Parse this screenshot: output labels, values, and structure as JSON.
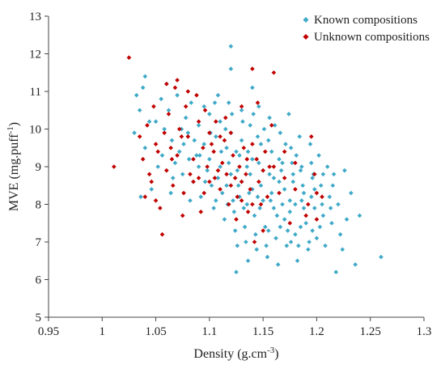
{
  "chart_data": {
    "type": "scatter",
    "title": "",
    "xlabel_main": "Density (g.cm",
    "xlabel_sup": "-3",
    "xlabel_end": ")",
    "ylabel_main": "MVE  (mg.puff",
    "ylabel_sup": "-1",
    "ylabel_end": ")",
    "xlim": [
      0.95,
      1.3
    ],
    "ylim": [
      5,
      13
    ],
    "xticks": [
      "0.95",
      "1",
      "1.05",
      "1.1",
      "1.15",
      "1.2",
      "1.25",
      "1.3"
    ],
    "yticks": [
      "5",
      "6",
      "7",
      "8",
      "9",
      "10",
      "11",
      "12",
      "13"
    ],
    "grid": false,
    "legend_position": "top-right",
    "series": [
      {
        "name": "Known compositions",
        "color": "#3FA9C8",
        "marker": "diamond",
        "points": [
          [
            1.04,
            11.4
          ],
          [
            1.038,
            11.1
          ],
          [
            1.032,
            10.9
          ],
          [
            1.035,
            10.5
          ],
          [
            1.03,
            9.9
          ],
          [
            1.04,
            9.5
          ],
          [
            1.05,
            10.2
          ],
          [
            1.055,
            10.8
          ],
          [
            1.06,
            11.2
          ],
          [
            1.062,
            10.5
          ],
          [
            1.065,
            9.7
          ],
          [
            1.068,
            9.1
          ],
          [
            1.07,
            10.9
          ],
          [
            1.072,
            9.4
          ],
          [
            1.075,
            8.8
          ],
          [
            1.078,
            10.3
          ],
          [
            1.08,
            9.9
          ],
          [
            1.083,
            10.7
          ],
          [
            1.085,
            8.6
          ],
          [
            1.088,
            9.3
          ],
          [
            1.09,
            10.1
          ],
          [
            1.092,
            8.2
          ],
          [
            1.095,
            9.6
          ],
          [
            1.098,
            8.9
          ],
          [
            1.1,
            10.4
          ],
          [
            1.1,
            9.2
          ],
          [
            1.102,
            8.5
          ],
          [
            1.104,
            7.9
          ],
          [
            1.106,
            9.8
          ],
          [
            1.108,
            10.9
          ],
          [
            1.11,
            10.2
          ],
          [
            1.11,
            9.0
          ],
          [
            1.112,
            8.3
          ],
          [
            1.114,
            7.6
          ],
          [
            1.116,
            9.5
          ],
          [
            1.118,
            10.7
          ],
          [
            1.12,
            11.6
          ],
          [
            1.12,
            9.9
          ],
          [
            1.12,
            8.8
          ],
          [
            1.122,
            8.1
          ],
          [
            1.124,
            7.3
          ],
          [
            1.126,
            6.9
          ],
          [
            1.128,
            9.3
          ],
          [
            1.13,
            10.5
          ],
          [
            1.13,
            9.7
          ],
          [
            1.13,
            8.6
          ],
          [
            1.132,
            7.9
          ],
          [
            1.134,
            7.0
          ],
          [
            1.136,
            6.5
          ],
          [
            1.138,
            10.1
          ],
          [
            1.14,
            11.1
          ],
          [
            1.14,
            9.2
          ],
          [
            1.14,
            8.4
          ],
          [
            1.142,
            7.7
          ],
          [
            1.144,
            6.8
          ],
          [
            1.146,
            10.6
          ],
          [
            1.148,
            9.6
          ],
          [
            1.15,
            8.9
          ],
          [
            1.15,
            8.1
          ],
          [
            1.152,
            7.4
          ],
          [
            1.154,
            6.6
          ],
          [
            1.156,
            10.3
          ],
          [
            1.158,
            9.4
          ],
          [
            1.16,
            8.7
          ],
          [
            1.16,
            7.9
          ],
          [
            1.162,
            7.1
          ],
          [
            1.164,
            6.4
          ],
          [
            1.166,
            9.9
          ],
          [
            1.168,
            9.1
          ],
          [
            1.17,
            8.4
          ],
          [
            1.17,
            7.6
          ],
          [
            1.172,
            6.9
          ],
          [
            1.174,
            10.4
          ],
          [
            1.176,
            9.5
          ],
          [
            1.178,
            8.8
          ],
          [
            1.18,
            8.0
          ],
          [
            1.18,
            7.2
          ],
          [
            1.182,
            6.5
          ],
          [
            1.184,
            9.8
          ],
          [
            1.186,
            9.0
          ],
          [
            1.188,
            8.3
          ],
          [
            1.19,
            7.5
          ],
          [
            1.192,
            6.8
          ],
          [
            1.194,
            9.6
          ],
          [
            1.196,
            8.7
          ],
          [
            1.198,
            7.9
          ],
          [
            1.2,
            7.1
          ],
          [
            1.202,
            9.3
          ],
          [
            1.204,
            8.5
          ],
          [
            1.206,
            7.7
          ],
          [
            1.208,
            6.9
          ],
          [
            1.21,
            9.0
          ],
          [
            1.212,
            8.2
          ],
          [
            1.214,
            7.5
          ],
          [
            1.216,
            8.8
          ],
          [
            1.218,
            6.2
          ],
          [
            1.22,
            8.0
          ],
          [
            1.222,
            7.2
          ],
          [
            1.224,
            6.8
          ],
          [
            1.228,
            7.6
          ],
          [
            1.232,
            8.3
          ],
          [
            1.236,
            6.4
          ],
          [
            1.24,
            7.7
          ],
          [
            1.26,
            6.6
          ],
          [
            1.12,
            12.2
          ],
          [
            1.125,
            6.2
          ],
          [
            1.105,
            10.7
          ],
          [
            1.115,
            10.0
          ],
          [
            1.135,
            9.0
          ],
          [
            1.145,
            8.2
          ],
          [
            1.155,
            9.7
          ],
          [
            1.165,
            8.6
          ],
          [
            1.175,
            7.8
          ],
          [
            1.185,
            8.9
          ],
          [
            1.195,
            8.2
          ],
          [
            1.125,
            9.4
          ],
          [
            1.135,
            8.0
          ],
          [
            1.145,
            9.8
          ],
          [
            1.155,
            7.3
          ],
          [
            1.165,
            9.2
          ],
          [
            1.175,
            8.1
          ],
          [
            1.185,
            7.4
          ],
          [
            1.195,
            9.1
          ],
          [
            1.205,
            8.0
          ],
          [
            1.215,
            8.5
          ],
          [
            1.108,
            8.7
          ],
          [
            1.118,
            9.1
          ],
          [
            1.128,
            8.2
          ],
          [
            1.138,
            8.8
          ],
          [
            1.148,
            8.5
          ],
          [
            1.158,
            8.3
          ],
          [
            1.168,
            8.0
          ],
          [
            1.178,
            8.6
          ],
          [
            1.188,
            7.9
          ],
          [
            1.198,
            8.4
          ],
          [
            1.09,
            9.0
          ],
          [
            1.095,
            10.6
          ],
          [
            1.082,
            8.1
          ],
          [
            1.076,
            9.6
          ],
          [
            1.066,
            8.7
          ],
          [
            1.056,
            9.3
          ],
          [
            1.046,
            8.4
          ],
          [
            1.036,
            8.2
          ],
          [
            1.044,
            10.2
          ],
          [
            1.052,
            9.0
          ],
          [
            1.058,
            10.0
          ],
          [
            1.064,
            8.3
          ],
          [
            1.074,
            10.0
          ],
          [
            1.086,
            9.7
          ],
          [
            1.096,
            8.6
          ],
          [
            1.106,
            8.1
          ],
          [
            1.116,
            8.5
          ],
          [
            1.126,
            8.9
          ],
          [
            1.136,
            9.4
          ],
          [
            1.146,
            9.1
          ],
          [
            1.156,
            8.8
          ],
          [
            1.166,
            7.4
          ],
          [
            1.176,
            7.0
          ],
          [
            1.186,
            8.1
          ],
          [
            1.196,
            7.3
          ],
          [
            1.206,
            8.8
          ],
          [
            1.226,
            8.9
          ],
          [
            1.121,
            10.4
          ],
          [
            1.131,
            10.2
          ],
          [
            1.141,
            10.4
          ],
          [
            1.151,
            10.0
          ],
          [
            1.161,
            10.1
          ],
          [
            1.171,
            9.6
          ],
          [
            1.181,
            9.3
          ],
          [
            1.111,
            9.4
          ],
          [
            1.101,
            9.9
          ],
          [
            1.091,
            9.3
          ],
          [
            1.081,
            9.2
          ],
          [
            1.123,
            7.8
          ],
          [
            1.133,
            7.4
          ],
          [
            1.143,
            7.2
          ],
          [
            1.153,
            6.9
          ],
          [
            1.163,
            7.7
          ],
          [
            1.173,
            7.3
          ],
          [
            1.183,
            6.9
          ],
          [
            1.193,
            7.0
          ],
          [
            1.203,
            7.4
          ],
          [
            1.213,
            7.9
          ],
          [
            1.117,
            8.0
          ],
          [
            1.127,
            8.5
          ],
          [
            1.137,
            8.3
          ],
          [
            1.147,
            7.9
          ],
          [
            1.157,
            8.1
          ],
          [
            1.167,
            8.9
          ],
          [
            1.177,
            9.1
          ],
          [
            1.187,
            8.5
          ],
          [
            1.197,
            8.8
          ]
        ]
      },
      {
        "name": "Unknown compositions",
        "color": "#C00000",
        "marker": "diamond",
        "points": [
          [
            1.025,
            11.9
          ],
          [
            1.011,
            9.0
          ],
          [
            1.035,
            9.8
          ],
          [
            1.038,
            9.2
          ],
          [
            1.04,
            8.2
          ],
          [
            1.042,
            10.1
          ],
          [
            1.044,
            8.8
          ],
          [
            1.046,
            8.6
          ],
          [
            1.048,
            10.6
          ],
          [
            1.05,
            9.6
          ],
          [
            1.052,
            9.4
          ],
          [
            1.054,
            7.9
          ],
          [
            1.056,
            7.2
          ],
          [
            1.058,
            9.9
          ],
          [
            1.06,
            11.2
          ],
          [
            1.062,
            10.4
          ],
          [
            1.064,
            9.5
          ],
          [
            1.066,
            8.5
          ],
          [
            1.068,
            11.1
          ],
          [
            1.07,
            11.3
          ],
          [
            1.072,
            10.0
          ],
          [
            1.074,
            9.8
          ],
          [
            1.076,
            8.3
          ],
          [
            1.078,
            10.6
          ],
          [
            1.08,
            11.0
          ],
          [
            1.082,
            8.8
          ],
          [
            1.085,
            9.2
          ],
          [
            1.088,
            10.9
          ],
          [
            1.09,
            8.7
          ],
          [
            1.092,
            7.8
          ],
          [
            1.094,
            9.5
          ],
          [
            1.096,
            10.5
          ],
          [
            1.098,
            9.0
          ],
          [
            1.1,
            8.6
          ],
          [
            1.102,
            9.6
          ],
          [
            1.104,
            9.4
          ],
          [
            1.106,
            10.2
          ],
          [
            1.108,
            8.9
          ],
          [
            1.11,
            8.4
          ],
          [
            1.112,
            9.1
          ],
          [
            1.114,
            9.7
          ],
          [
            1.116,
            8.8
          ],
          [
            1.118,
            8.0
          ],
          [
            1.12,
            8.5
          ],
          [
            1.122,
            9.3
          ],
          [
            1.124,
            8.7
          ],
          [
            1.126,
            8.2
          ],
          [
            1.128,
            9.0
          ],
          [
            1.13,
            8.6
          ],
          [
            1.132,
            9.5
          ],
          [
            1.134,
            8.8
          ],
          [
            1.136,
            7.8
          ],
          [
            1.138,
            8.4
          ],
          [
            1.14,
            11.6
          ],
          [
            1.142,
            7.0
          ],
          [
            1.144,
            9.2
          ],
          [
            1.146,
            8.6
          ],
          [
            1.148,
            8.0
          ],
          [
            1.15,
            7.3
          ],
          [
            1.152,
            9.4
          ],
          [
            1.154,
            8.2
          ],
          [
            1.156,
            9.0
          ],
          [
            1.158,
            10.1
          ],
          [
            1.16,
            11.5
          ],
          [
            1.165,
            8.3
          ],
          [
            1.17,
            9.4
          ],
          [
            1.175,
            7.5
          ],
          [
            1.18,
            8.4
          ],
          [
            1.19,
            7.7
          ],
          [
            1.198,
            8.8
          ],
          [
            1.2,
            7.6
          ],
          [
            1.2,
            8.3
          ],
          [
            1.12,
            9.9
          ],
          [
            1.13,
            10.6
          ],
          [
            1.115,
            10.3
          ],
          [
            1.105,
            8.7
          ],
          [
            1.095,
            8.3
          ],
          [
            1.135,
            9.2
          ],
          [
            1.145,
            10.7
          ],
          [
            1.125,
            7.6
          ],
          [
            1.14,
            8.0
          ],
          [
            1.05,
            8.1
          ],
          [
            1.06,
            8.9
          ],
          [
            1.07,
            9.3
          ],
          [
            1.08,
            9.8
          ],
          [
            1.09,
            10.2
          ],
          [
            1.11,
            9.8
          ],
          [
            1.14,
            9.6
          ],
          [
            1.16,
            9.0
          ],
          [
            1.18,
            9.1
          ],
          [
            1.195,
            9.8
          ],
          [
            1.065,
            9.2
          ],
          [
            1.075,
            7.7
          ],
          [
            1.085,
            8.6
          ],
          [
            1.1,
            9.9
          ],
          [
            1.13,
            8.1
          ],
          [
            1.15,
            8.9
          ],
          [
            1.17,
            8.7
          ],
          [
            1.192,
            8.0
          ],
          [
            1.205,
            8.2
          ]
        ]
      }
    ]
  }
}
